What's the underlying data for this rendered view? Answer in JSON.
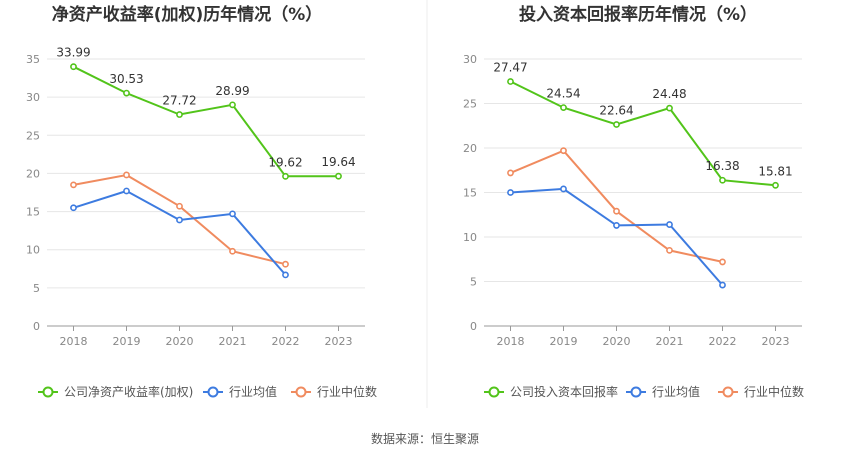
{
  "chart_data": [
    {
      "type": "line",
      "title": "净资产收益率(加权)历年情况（%）",
      "categories": [
        "2018",
        "2019",
        "2020",
        "2021",
        "2022",
        "2023"
      ],
      "ylim": [
        0,
        35
      ],
      "yticks": [
        0,
        5,
        10,
        15,
        20,
        25,
        30,
        35
      ],
      "grid": true,
      "legend_position": "bottom",
      "series": [
        {
          "name": "公司净资产收益率(加权)",
          "color": "#52c41a",
          "values": [
            33.99,
            30.53,
            27.72,
            28.99,
            19.62,
            19.64
          ],
          "labels": [
            "33.99",
            "30.53",
            "27.72",
            "28.99",
            "19.62",
            "19.64"
          ]
        },
        {
          "name": "行业均值",
          "color": "#3d7be0",
          "values": [
            15.5,
            17.7,
            13.9,
            14.7,
            6.7,
            null
          ]
        },
        {
          "name": "行业中位数",
          "color": "#f08b5f",
          "values": [
            18.5,
            19.8,
            15.7,
            9.8,
            8.1,
            null
          ]
        }
      ]
    },
    {
      "type": "line",
      "title": "投入资本回报率历年情况（%）",
      "categories": [
        "2018",
        "2019",
        "2020",
        "2021",
        "2022",
        "2023"
      ],
      "ylim": [
        0,
        30
      ],
      "yticks": [
        0,
        5,
        10,
        15,
        20,
        25,
        30
      ],
      "grid": true,
      "legend_position": "bottom",
      "series": [
        {
          "name": "公司投入资本回报率",
          "color": "#52c41a",
          "values": [
            27.47,
            24.54,
            22.64,
            24.48,
            16.38,
            15.81
          ],
          "labels": [
            "27.47",
            "24.54",
            "22.64",
            "24.48",
            "16.38",
            "15.81"
          ]
        },
        {
          "name": "行业均值",
          "color": "#3d7be0",
          "values": [
            15.0,
            15.4,
            11.3,
            11.4,
            4.6,
            null
          ]
        },
        {
          "name": "行业中位数",
          "color": "#f08b5f",
          "values": [
            17.2,
            19.7,
            12.9,
            8.5,
            7.2,
            null
          ]
        }
      ]
    }
  ],
  "footer": {
    "source": "数据来源：恒生聚源"
  },
  "colors": {
    "grid": "#e6e6e6",
    "axis": "#999999",
    "divider": "#eeeeee"
  }
}
